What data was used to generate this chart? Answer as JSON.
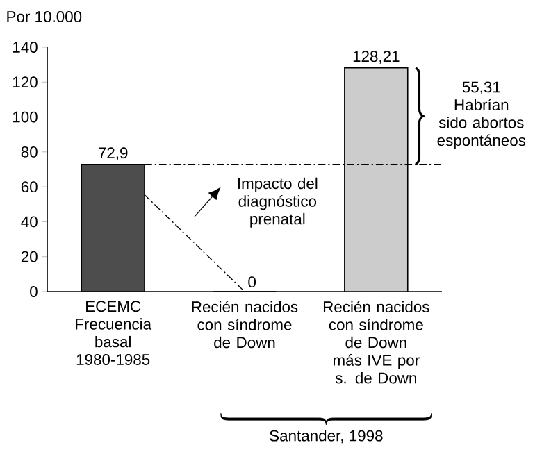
{
  "chart_data": {
    "type": "bar",
    "ylabel": "Por 10.000",
    "categories": [
      "ECEMC Frecuencia basal 1980-1985",
      "Recién nacidos con síndrome de Down",
      "Recién nacidos con síndrome de Down más IVE por s. de Down"
    ],
    "series": [
      {
        "colors": [
          "#4d4d4d",
          "#4d4d4d",
          "#cccccc"
        ],
        "values": [
          72.9,
          0,
          128.21
        ],
        "value_labels": [
          "72,9",
          "0",
          "128,21"
        ]
      },
      {
        "type": "line",
        "color": "#000000",
        "line_style": "dashdot",
        "values": [
          72.9,
          0,
          null
        ]
      }
    ],
    "ylim": [
      0,
      140
    ],
    "yticks": [
      0,
      20,
      40,
      60,
      80,
      100,
      120,
      140
    ],
    "ref_lines": [
      {
        "axis": "y",
        "value": 72.9,
        "color": "#000000",
        "line_style": "dashdot"
      }
    ],
    "annotations": [
      "Impacto del diagnóstico prenatal",
      "55,31 Habrían sido abortos espontáneos",
      "Santander, 1998"
    ]
  }
}
